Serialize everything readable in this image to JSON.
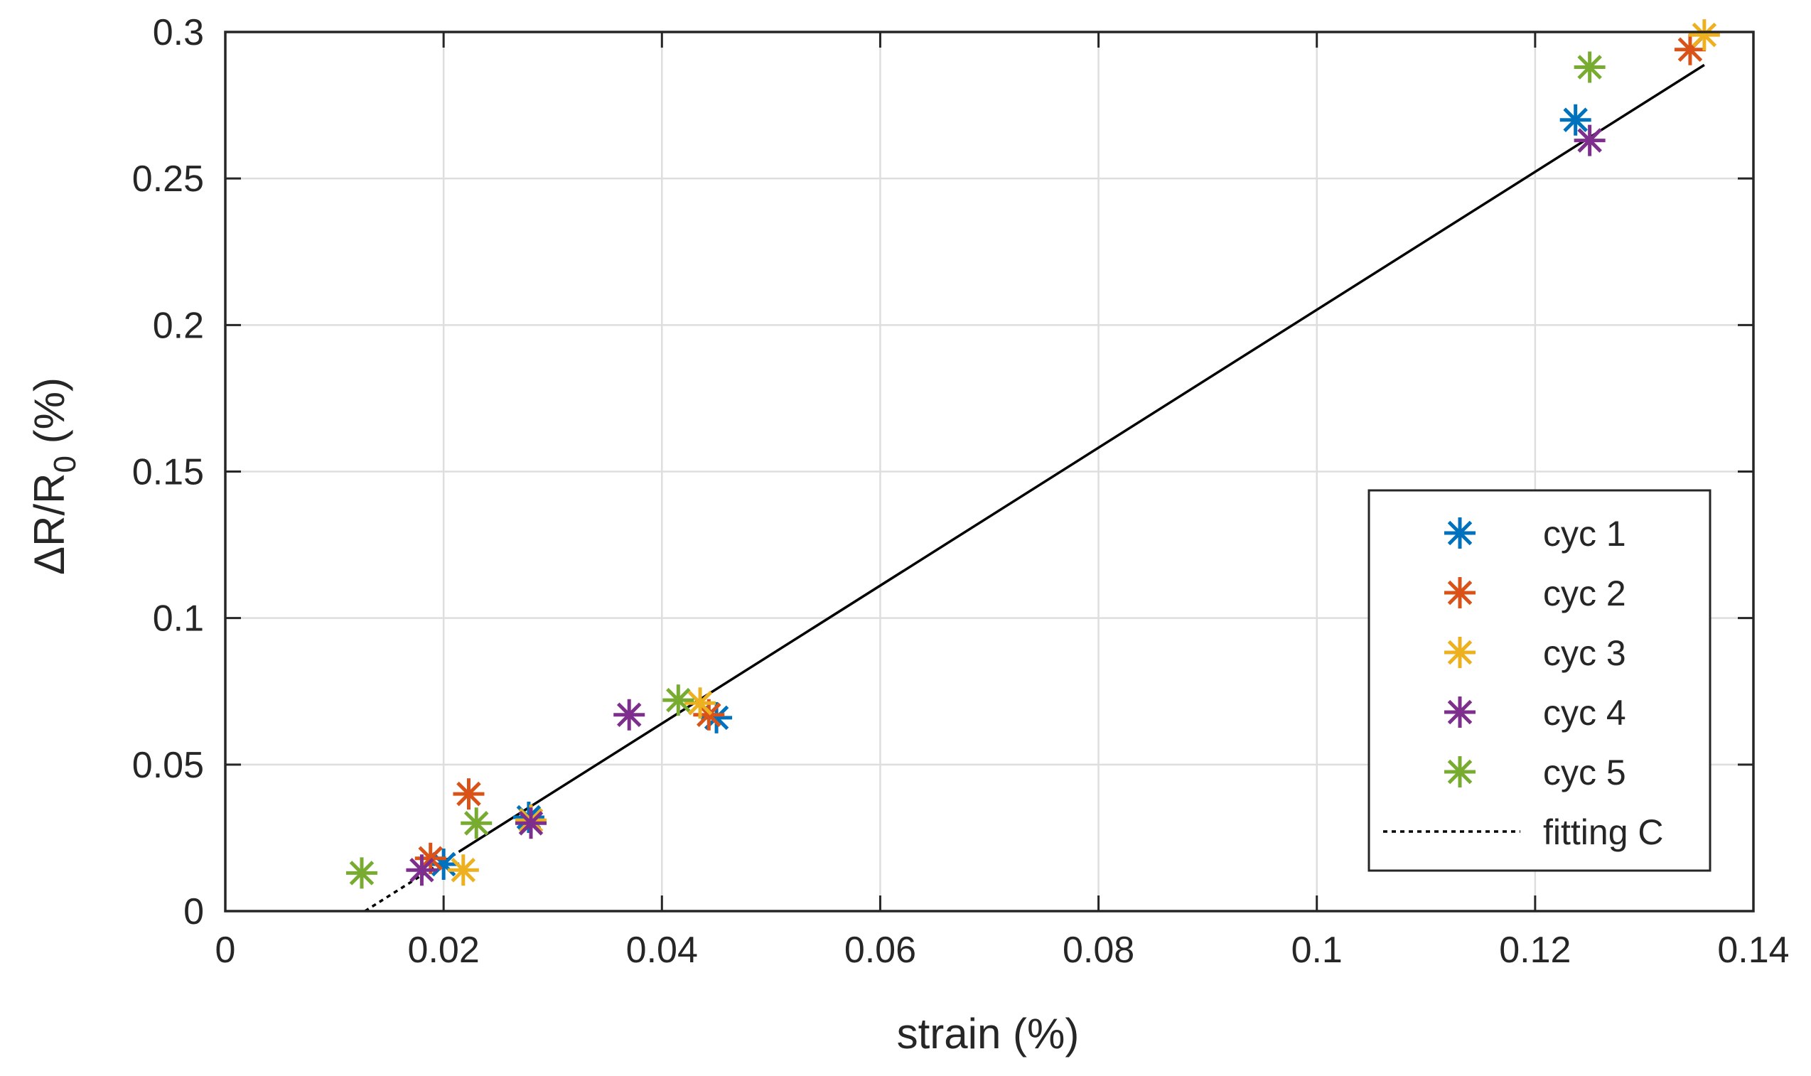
{
  "chart_data": {
    "type": "scatter",
    "title": "",
    "xlabel": "strain (%)",
    "ylabel_parts": {
      "delta": "ΔR/R",
      "subscript": "0",
      "unit": " (%)"
    },
    "xlim": [
      0,
      0.14
    ],
    "ylim": [
      0,
      0.3
    ],
    "x_ticks": [
      0,
      0.02,
      0.04,
      0.06,
      0.08,
      0.1,
      0.12,
      0.14
    ],
    "y_ticks": [
      0,
      0.05,
      0.1,
      0.15,
      0.2,
      0.25,
      0.3
    ],
    "x_tick_labels": [
      "0",
      "0.02",
      "0.04",
      "0.06",
      "0.08",
      "0.1",
      "0.12",
      "0.14"
    ],
    "y_tick_labels": [
      "0",
      "0.05",
      "0.1",
      "0.15",
      "0.2",
      "0.25",
      "0.3"
    ],
    "grid": true,
    "legend_position": "bottom-right",
    "series": [
      {
        "name": "cyc 1",
        "color": "#0072BD",
        "marker": "asterisk",
        "x": [
          0.02,
          0.0278,
          0.045,
          0.1237
        ],
        "y": [
          0.016,
          0.032,
          0.066,
          0.27
        ]
      },
      {
        "name": "cyc 2",
        "color": "#D95319",
        "marker": "asterisk",
        "x": [
          0.0188,
          0.0223,
          0.0443,
          0.1342
        ],
        "y": [
          0.018,
          0.04,
          0.067,
          0.294
        ]
      },
      {
        "name": "cyc 3",
        "color": "#EDB120",
        "marker": "asterisk",
        "x": [
          0.0218,
          0.028,
          0.0435,
          0.1355
        ],
        "y": [
          0.014,
          0.031,
          0.071,
          0.299
        ]
      },
      {
        "name": "cyc 4",
        "color": "#7E2F8E",
        "marker": "asterisk",
        "x": [
          0.018,
          0.028,
          0.037,
          0.125
        ],
        "y": [
          0.014,
          0.03,
          0.067,
          0.263
        ]
      },
      {
        "name": "cyc 5",
        "color": "#77AC30",
        "marker": "asterisk",
        "x": [
          0.0125,
          0.023,
          0.0415,
          0.125
        ],
        "y": [
          0.013,
          0.03,
          0.072,
          0.288
        ]
      }
    ],
    "fit": {
      "name": "fitting C",
      "color": "#000000",
      "x_start": 0.0128,
      "x_dotted_end": 0.0215,
      "x_end": 0.1355,
      "slope": 2.3531,
      "intercept": -0.0301
    }
  }
}
